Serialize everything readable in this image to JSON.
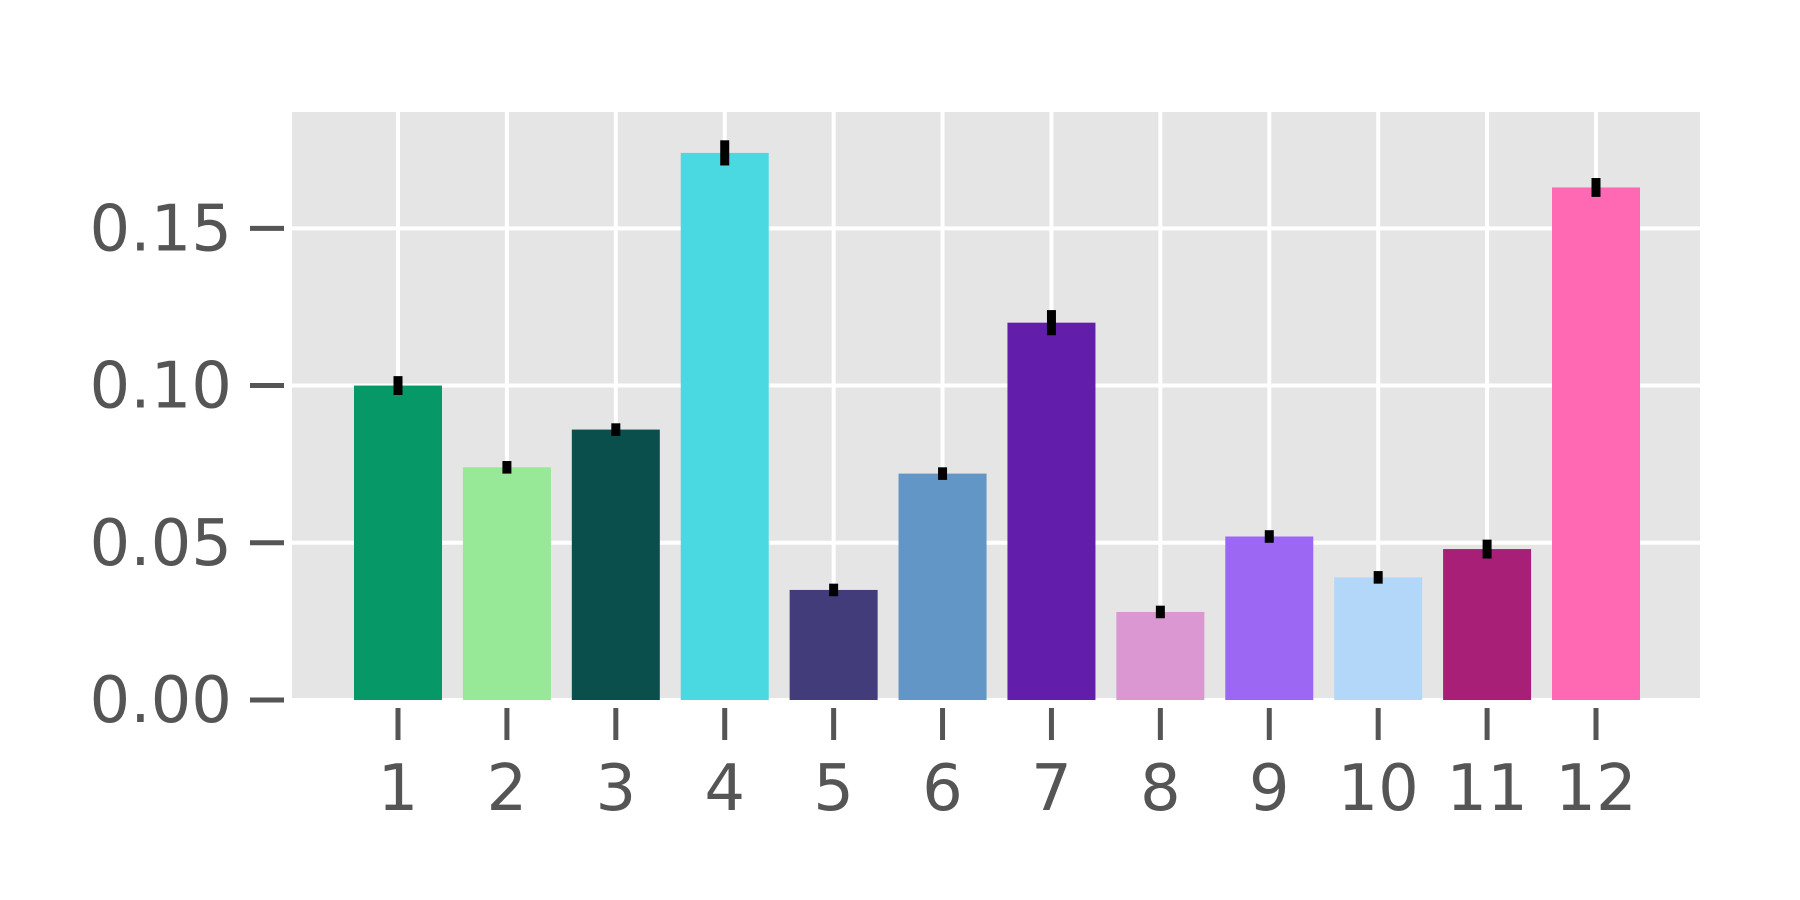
{
  "chart_data": {
    "type": "bar",
    "title": "",
    "xlabel": "",
    "ylabel": "",
    "categories": [
      "1",
      "2",
      "3",
      "4",
      "5",
      "6",
      "7",
      "8",
      "9",
      "10",
      "11",
      "12"
    ],
    "values": [
      0.1,
      0.074,
      0.086,
      0.174,
      0.035,
      0.072,
      0.12,
      0.028,
      0.052,
      0.039,
      0.048,
      0.163
    ],
    "errors": [
      0.003,
      0.002,
      0.002,
      0.004,
      0.002,
      0.002,
      0.004,
      0.002,
      0.002,
      0.002,
      0.003,
      0.003
    ],
    "colors": [
      "#069866",
      "#97e897",
      "#0a4f4c",
      "#4ad9e1",
      "#433c7b",
      "#6196c6",
      "#621dab",
      "#da97d1",
      "#9b67f3",
      "#b2d7f8",
      "#a71f76",
      "#ff69b4"
    ],
    "ylim": [
      0,
      0.187
    ],
    "yticks": [
      "0.00",
      "0.05",
      "0.10",
      "0.15"
    ],
    "ytick_values": [
      0,
      0.05,
      0.1,
      0.15
    ],
    "grid": true,
    "background_color": "#e5e5e5",
    "grid_color": "#ffffff"
  }
}
